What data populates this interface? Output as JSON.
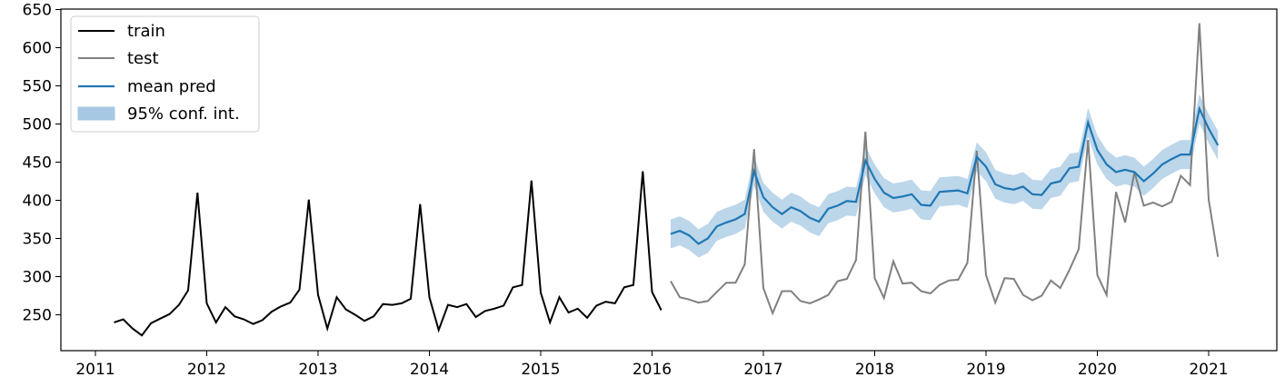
{
  "chart_data": {
    "type": "line",
    "title": "",
    "xlabel": "",
    "ylabel": "",
    "xlim": [
      2010.8,
      2021.6
    ],
    "ylim": [
      200,
      650
    ],
    "xticks": [
      2011,
      2012,
      2013,
      2014,
      2015,
      2016,
      2017,
      2018,
      2019,
      2020,
      2021
    ],
    "xtick_labels": [
      "2011",
      "2012",
      "2013",
      "2014",
      "2015",
      "2016",
      "2017",
      "2018",
      "2019",
      "2020",
      "2021"
    ],
    "yticks": [
      250,
      300,
      350,
      400,
      450,
      500,
      550,
      600,
      650
    ],
    "ytick_labels": [
      "250",
      "300",
      "350",
      "400",
      "450",
      "500",
      "550",
      "600",
      "650"
    ],
    "grid": false,
    "legend_position": "top-left",
    "legend": [
      "train",
      "test",
      "mean pred",
      "95% conf. int."
    ],
    "colors": {
      "train": "#000000",
      "test": "#808080",
      "mean_pred": "#1f77b4",
      "conf_fill": "#a6c8e3"
    },
    "series": [
      {
        "name": "train",
        "x": [
          2011.167,
          2011.25,
          2011.333,
          2011.417,
          2011.5,
          2011.583,
          2011.667,
          2011.75,
          2011.833,
          2011.917,
          2012.0,
          2012.083,
          2012.167,
          2012.25,
          2012.333,
          2012.417,
          2012.5,
          2012.583,
          2012.667,
          2012.75,
          2012.833,
          2012.917,
          2013.0,
          2013.083,
          2013.167,
          2013.25,
          2013.333,
          2013.417,
          2013.5,
          2013.583,
          2013.667,
          2013.75,
          2013.833,
          2013.917,
          2014.0,
          2014.083,
          2014.167,
          2014.25,
          2014.333,
          2014.417,
          2014.5,
          2014.583,
          2014.667,
          2014.75,
          2014.833,
          2014.917,
          2015.0,
          2015.083,
          2015.167,
          2015.25,
          2015.333,
          2015.417,
          2015.5,
          2015.583,
          2015.667,
          2015.75,
          2015.833,
          2015.917,
          2016.0,
          2016.083
        ],
        "values": [
          240,
          244,
          232,
          223,
          239,
          245,
          251,
          263,
          282,
          410,
          265,
          240,
          260,
          248,
          244,
          238,
          243,
          254,
          261,
          266,
          283,
          401,
          276,
          232,
          273,
          257,
          250,
          242,
          248,
          264,
          263,
          265,
          271,
          395,
          273,
          230,
          263,
          260,
          264,
          247,
          255,
          258,
          262,
          286,
          289,
          426,
          279,
          240,
          273,
          253,
          258,
          246,
          262,
          267,
          265,
          286,
          289,
          438,
          280,
          256
        ]
      },
      {
        "name": "test",
        "x": [
          2016.167,
          2016.25,
          2016.333,
          2016.417,
          2016.5,
          2016.583,
          2016.667,
          2016.75,
          2016.833,
          2016.917,
          2017.0,
          2017.083,
          2017.167,
          2017.25,
          2017.333,
          2017.417,
          2017.5,
          2017.583,
          2017.667,
          2017.75,
          2017.833,
          2017.917,
          2018.0,
          2018.083,
          2018.167,
          2018.25,
          2018.333,
          2018.417,
          2018.5,
          2018.583,
          2018.667,
          2018.75,
          2018.833,
          2018.917,
          2019.0,
          2019.083,
          2019.167,
          2019.25,
          2019.333,
          2019.417,
          2019.5,
          2019.583,
          2019.667,
          2019.75,
          2019.833,
          2019.917,
          2020.0,
          2020.083,
          2020.167,
          2020.25,
          2020.333,
          2020.417,
          2020.5,
          2020.583,
          2020.667,
          2020.75,
          2020.833,
          2020.917,
          2021.0,
          2021.083
        ],
        "values": [
          294,
          273,
          270,
          266,
          268,
          280,
          292,
          292,
          316,
          467,
          285,
          252,
          281,
          281,
          268,
          265,
          270,
          276,
          294,
          297,
          322,
          490,
          298,
          272,
          320,
          291,
          292,
          281,
          278,
          289,
          295,
          296,
          318,
          465,
          302,
          266,
          298,
          297,
          276,
          269,
          275,
          295,
          285,
          309,
          336,
          479,
          302,
          276,
          411,
          371,
          437,
          393,
          397,
          392,
          398,
          432,
          420,
          632,
          401,
          326
        ]
      },
      {
        "name": "mean pred",
        "x": [
          2016.167,
          2016.25,
          2016.333,
          2016.417,
          2016.5,
          2016.583,
          2016.667,
          2016.75,
          2016.833,
          2016.917,
          2017.0,
          2017.083,
          2017.167,
          2017.25,
          2017.333,
          2017.417,
          2017.5,
          2017.583,
          2017.667,
          2017.75,
          2017.833,
          2017.917,
          2018.0,
          2018.083,
          2018.167,
          2018.25,
          2018.333,
          2018.417,
          2018.5,
          2018.583,
          2018.667,
          2018.75,
          2018.833,
          2018.917,
          2019.0,
          2019.083,
          2019.167,
          2019.25,
          2019.333,
          2019.417,
          2019.5,
          2019.583,
          2019.667,
          2019.75,
          2019.833,
          2019.917,
          2020.0,
          2020.083,
          2020.167,
          2020.25,
          2020.333,
          2020.417,
          2020.5,
          2020.583,
          2020.667,
          2020.75,
          2020.833,
          2020.917,
          2021.0,
          2021.083
        ],
        "values": [
          356,
          360,
          354,
          343,
          350,
          366,
          371,
          375,
          382,
          438,
          404,
          391,
          382,
          391,
          386,
          377,
          372,
          389,
          393,
          399,
          398,
          452,
          428,
          410,
          403,
          405,
          408,
          394,
          393,
          411,
          412,
          413,
          409,
          457,
          444,
          421,
          416,
          414,
          418,
          408,
          407,
          422,
          425,
          442,
          444,
          502,
          466,
          447,
          437,
          440,
          437,
          425,
          435,
          447,
          454,
          460,
          460,
          520,
          494,
          472
        ]
      }
    ],
    "confidence_interval": {
      "name": "95% conf. int.",
      "x": [
        2016.167,
        2016.25,
        2016.333,
        2016.417,
        2016.5,
        2016.583,
        2016.667,
        2016.75,
        2016.833,
        2016.917,
        2017.0,
        2017.083,
        2017.167,
        2017.25,
        2017.333,
        2017.417,
        2017.5,
        2017.583,
        2017.667,
        2017.75,
        2017.833,
        2017.917,
        2018.0,
        2018.083,
        2018.167,
        2018.25,
        2018.333,
        2018.417,
        2018.5,
        2018.583,
        2018.667,
        2018.75,
        2018.833,
        2018.917,
        2019.0,
        2019.083,
        2019.167,
        2019.25,
        2019.333,
        2019.417,
        2019.5,
        2019.583,
        2019.667,
        2019.75,
        2019.833,
        2019.917,
        2020.0,
        2020.083,
        2020.167,
        2020.25,
        2020.333,
        2020.417,
        2020.5,
        2020.583,
        2020.667,
        2020.75,
        2020.833,
        2020.917,
        2021.0,
        2021.083
      ],
      "lower": [
        337,
        341,
        335,
        325,
        331,
        347,
        352,
        356,
        363,
        419,
        385,
        372,
        363,
        372,
        367,
        358,
        353,
        370,
        374,
        380,
        379,
        433,
        409,
        391,
        384,
        386,
        389,
        375,
        374,
        392,
        393,
        394,
        390,
        438,
        425,
        402,
        397,
        395,
        399,
        389,
        388,
        403,
        406,
        423,
        425,
        483,
        447,
        428,
        418,
        421,
        418,
        406,
        416,
        428,
        435,
        441,
        441,
        501,
        475,
        453
      ],
      "upper": [
        375,
        379,
        373,
        362,
        369,
        385,
        390,
        394,
        401,
        457,
        423,
        410,
        401,
        410,
        405,
        396,
        391,
        408,
        412,
        418,
        417,
        471,
        447,
        429,
        422,
        424,
        427,
        413,
        412,
        430,
        431,
        432,
        428,
        476,
        463,
        440,
        435,
        433,
        437,
        427,
        426,
        441,
        444,
        461,
        463,
        521,
        485,
        466,
        456,
        459,
        456,
        444,
        454,
        466,
        473,
        479,
        479,
        539,
        513,
        491
      ]
    }
  }
}
